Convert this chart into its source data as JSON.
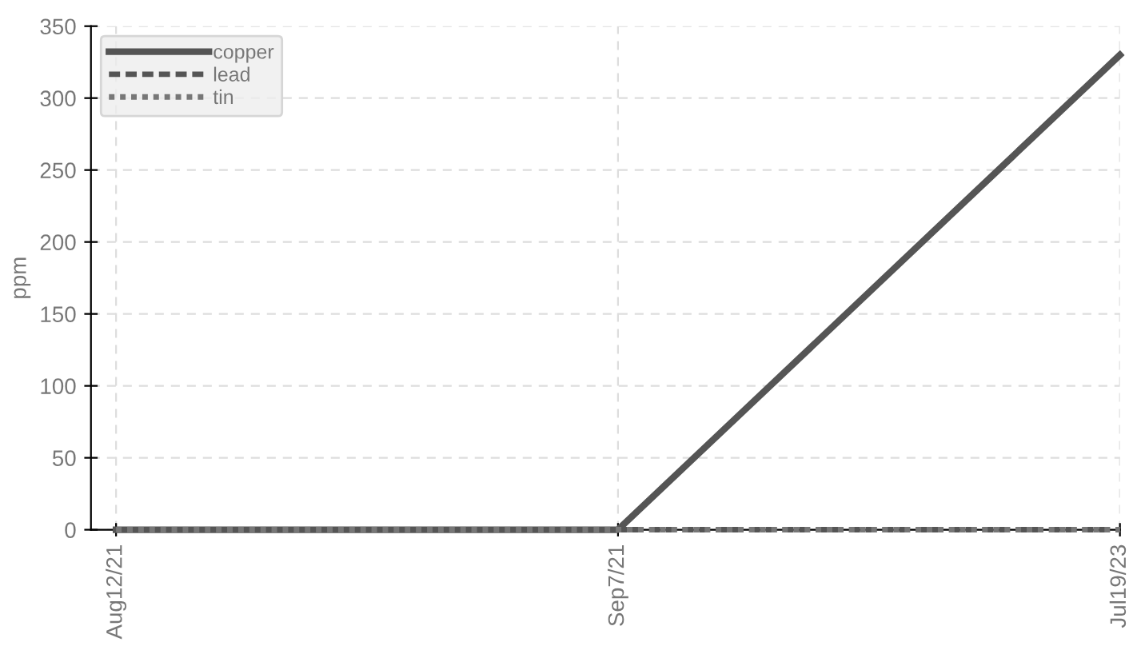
{
  "chart_data": {
    "type": "line",
    "ylabel": "ppm",
    "categories": [
      "Aug12/21",
      "Sep7/21",
      "Jul19/23"
    ],
    "series": [
      {
        "name": "copper",
        "color": "#555555",
        "values": [
          0,
          0,
          330
        ],
        "line_style": "solid"
      },
      {
        "name": "lead",
        "color": "#555555",
        "values": [
          0,
          0,
          0
        ],
        "line_style": "dashed"
      },
      {
        "name": "tin",
        "color": "#777777",
        "values": [
          0,
          0,
          0
        ],
        "line_style": "dotted"
      }
    ],
    "ylim": [
      0,
      350
    ],
    "yticks": [
      0,
      50,
      100,
      150,
      200,
      250,
      300,
      350
    ],
    "grid": true,
    "legend": "top left",
    "marker": "none"
  }
}
